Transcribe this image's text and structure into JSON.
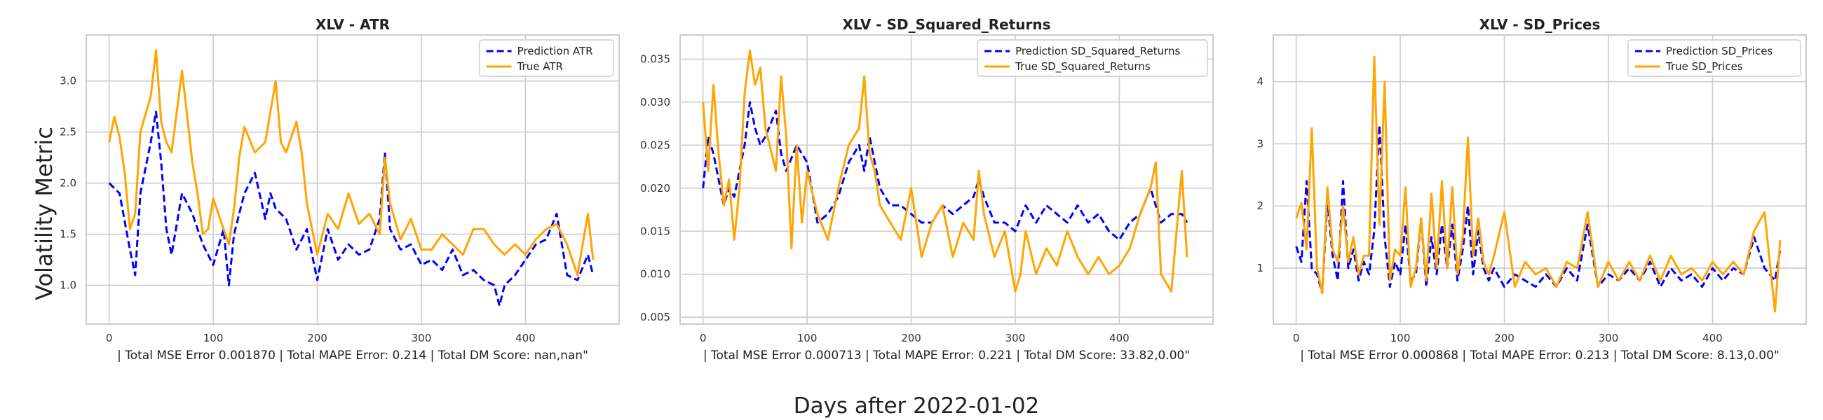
{
  "figure": {
    "ylabel": "Volatility Metric",
    "xlabel": "Days after 2022-01-02"
  },
  "chart_data": [
    {
      "type": "line",
      "title": "XLV - ATR",
      "xlabel": "| Total MSE Error 0.001870 | Total MAPE Error: 0.214 | Total DM Score: nan,nan\"",
      "xlim": [
        -22,
        490
      ],
      "ylim": [
        0.62,
        3.45
      ],
      "xticks": [
        0,
        100,
        200,
        300,
        400
      ],
      "yticks": [
        1.0,
        1.5,
        2.0,
        2.5,
        3.0
      ],
      "ytick_labels": [
        "1.0",
        "1.5",
        "2.0",
        "2.5",
        "3.0"
      ],
      "legend": "top-right",
      "grid": true,
      "series": [
        {
          "name": "Prediction ATR",
          "color": "#0000ff",
          "style": "dashed",
          "x": [
            0,
            10,
            20,
            25,
            30,
            40,
            45,
            50,
            55,
            60,
            70,
            80,
            90,
            100,
            110,
            115,
            120,
            130,
            140,
            150,
            155,
            160,
            170,
            180,
            190,
            200,
            210,
            220,
            230,
            240,
            250,
            260,
            265,
            270,
            280,
            290,
            300,
            310,
            320,
            330,
            340,
            350,
            360,
            370,
            375,
            380,
            390,
            400,
            410,
            420,
            430,
            440,
            450,
            460,
            465
          ],
          "y": [
            2.0,
            1.9,
            1.35,
            1.1,
            1.9,
            2.4,
            2.7,
            2.2,
            1.55,
            1.3,
            1.9,
            1.7,
            1.4,
            1.2,
            1.55,
            1.0,
            1.5,
            1.9,
            2.1,
            1.65,
            1.9,
            1.75,
            1.65,
            1.35,
            1.55,
            1.05,
            1.55,
            1.25,
            1.4,
            1.3,
            1.35,
            1.65,
            2.3,
            1.55,
            1.35,
            1.4,
            1.2,
            1.25,
            1.15,
            1.35,
            1.1,
            1.15,
            1.05,
            1.0,
            0.8,
            1.0,
            1.1,
            1.25,
            1.4,
            1.45,
            1.7,
            1.1,
            1.05,
            1.3,
            1.1
          ]
        },
        {
          "name": "True ATR",
          "color": "#ffa500",
          "style": "solid",
          "x": [
            0,
            5,
            10,
            15,
            20,
            25,
            30,
            40,
            45,
            50,
            55,
            60,
            70,
            75,
            80,
            85,
            90,
            95,
            100,
            110,
            115,
            120,
            125,
            130,
            140,
            150,
            155,
            160,
            165,
            170,
            180,
            185,
            190,
            200,
            210,
            220,
            230,
            240,
            250,
            260,
            265,
            270,
            280,
            290,
            300,
            310,
            320,
            330,
            340,
            350,
            360,
            370,
            380,
            390,
            400,
            410,
            420,
            430,
            440,
            450,
            460,
            465
          ],
          "y": [
            2.4,
            2.65,
            2.45,
            2.1,
            1.55,
            1.7,
            2.5,
            2.85,
            3.3,
            2.6,
            2.4,
            2.3,
            3.1,
            2.65,
            2.2,
            1.9,
            1.5,
            1.55,
            1.85,
            1.55,
            1.4,
            1.75,
            2.25,
            2.55,
            2.3,
            2.4,
            2.7,
            3.0,
            2.4,
            2.3,
            2.6,
            2.3,
            1.8,
            1.3,
            1.7,
            1.55,
            1.9,
            1.6,
            1.7,
            1.5,
            2.25,
            1.8,
            1.45,
            1.65,
            1.35,
            1.35,
            1.5,
            1.4,
            1.3,
            1.55,
            1.55,
            1.4,
            1.3,
            1.4,
            1.3,
            1.45,
            1.55,
            1.6,
            1.4,
            1.1,
            1.7,
            1.25
          ]
        }
      ]
    },
    {
      "type": "line",
      "title": "XLV - SD_Squared_Returns",
      "xlabel": "| Total MSE Error 0.000713 | Total MAPE Error: 0.221 | Total DM Score: 33.82,0.00\"",
      "xlim": [
        -22,
        490
      ],
      "ylim": [
        0.0042,
        0.0378
      ],
      "xticks": [
        0,
        100,
        200,
        300,
        400
      ],
      "yticks": [
        0.005,
        0.01,
        0.015,
        0.02,
        0.025,
        0.03,
        0.035
      ],
      "ytick_labels": [
        "0.005",
        "0.010",
        "0.015",
        "0.020",
        "0.025",
        "0.030",
        "0.035"
      ],
      "legend": "top-right",
      "grid": true,
      "series": [
        {
          "name": "Prediction SD_Squared_Returns",
          "color": "#0000ff",
          "style": "dashed",
          "x": [
            0,
            5,
            10,
            15,
            20,
            25,
            30,
            40,
            45,
            50,
            55,
            60,
            70,
            75,
            80,
            90,
            100,
            110,
            120,
            130,
            140,
            150,
            155,
            160,
            170,
            180,
            190,
            200,
            210,
            220,
            230,
            240,
            250,
            260,
            265,
            270,
            280,
            290,
            300,
            310,
            320,
            330,
            340,
            350,
            360,
            370,
            380,
            390,
            400,
            410,
            420,
            430,
            440,
            450,
            460,
            465
          ],
          "y": [
            0.02,
            0.026,
            0.024,
            0.021,
            0.018,
            0.02,
            0.019,
            0.025,
            0.03,
            0.027,
            0.025,
            0.026,
            0.029,
            0.024,
            0.022,
            0.025,
            0.023,
            0.016,
            0.017,
            0.019,
            0.023,
            0.025,
            0.022,
            0.026,
            0.02,
            0.018,
            0.018,
            0.017,
            0.016,
            0.016,
            0.018,
            0.017,
            0.018,
            0.019,
            0.021,
            0.019,
            0.016,
            0.016,
            0.015,
            0.018,
            0.016,
            0.018,
            0.017,
            0.016,
            0.018,
            0.016,
            0.017,
            0.015,
            0.014,
            0.016,
            0.017,
            0.02,
            0.016,
            0.017,
            0.017,
            0.016
          ]
        },
        {
          "name": "True SD_Squared_Returns",
          "color": "#ffa500",
          "style": "solid",
          "x": [
            0,
            5,
            10,
            15,
            20,
            25,
            30,
            35,
            40,
            45,
            50,
            55,
            60,
            70,
            75,
            80,
            85,
            90,
            95,
            100,
            110,
            120,
            130,
            140,
            150,
            155,
            160,
            165,
            170,
            180,
            190,
            200,
            210,
            220,
            230,
            240,
            250,
            260,
            265,
            270,
            280,
            290,
            300,
            305,
            310,
            320,
            330,
            340,
            350,
            360,
            370,
            380,
            390,
            400,
            410,
            420,
            430,
            435,
            440,
            450,
            460,
            465
          ],
          "y": [
            0.03,
            0.022,
            0.032,
            0.024,
            0.018,
            0.021,
            0.014,
            0.02,
            0.031,
            0.036,
            0.032,
            0.034,
            0.027,
            0.022,
            0.033,
            0.026,
            0.013,
            0.025,
            0.016,
            0.022,
            0.017,
            0.014,
            0.02,
            0.025,
            0.027,
            0.033,
            0.024,
            0.022,
            0.018,
            0.016,
            0.014,
            0.02,
            0.012,
            0.016,
            0.018,
            0.012,
            0.016,
            0.014,
            0.022,
            0.017,
            0.012,
            0.015,
            0.008,
            0.01,
            0.015,
            0.01,
            0.013,
            0.011,
            0.015,
            0.012,
            0.01,
            0.012,
            0.01,
            0.011,
            0.013,
            0.017,
            0.02,
            0.023,
            0.01,
            0.008,
            0.022,
            0.012
          ]
        }
      ]
    },
    {
      "type": "line",
      "title": "XLV - SD_Prices",
      "xlabel": "| Total MSE Error 0.000868 | Total MAPE Error: 0.213 | Total DM Score: 8.13,0.00\"",
      "xlim": [
        -22,
        490
      ],
      "ylim": [
        0.1,
        4.75
      ],
      "xticks": [
        0,
        100,
        200,
        300,
        400
      ],
      "yticks": [
        1,
        2,
        3,
        4
      ],
      "ytick_labels": [
        "1",
        "2",
        "3",
        "4"
      ],
      "legend": "top-right",
      "grid": true,
      "series": [
        {
          "name": "Prediction SD_Prices",
          "color": "#0000ff",
          "style": "dashed",
          "x": [
            0,
            5,
            10,
            15,
            20,
            25,
            30,
            35,
            40,
            45,
            50,
            55,
            60,
            65,
            70,
            75,
            80,
            85,
            90,
            95,
            100,
            105,
            110,
            115,
            120,
            125,
            130,
            135,
            140,
            145,
            150,
            155,
            160,
            165,
            170,
            175,
            180,
            185,
            190,
            200,
            210,
            220,
            230,
            240,
            250,
            260,
            270,
            280,
            290,
            300,
            310,
            320,
            330,
            340,
            350,
            360,
            370,
            380,
            390,
            400,
            410,
            420,
            430,
            440,
            450,
            460,
            465
          ],
          "y": [
            1.35,
            1.1,
            2.4,
            1.0,
            0.9,
            0.6,
            2.1,
            1.2,
            0.8,
            2.4,
            1.0,
            1.3,
            0.8,
            1.1,
            0.9,
            1.6,
            3.3,
            1.5,
            0.7,
            1.1,
            0.9,
            1.7,
            0.8,
            0.9,
            1.8,
            0.7,
            1.5,
            0.9,
            1.7,
            1.0,
            1.7,
            0.8,
            1.3,
            2.0,
            0.9,
            1.6,
            1.0,
            0.8,
            1.0,
            0.7,
            0.9,
            0.8,
            0.7,
            0.9,
            0.7,
            1.0,
            0.8,
            1.7,
            0.7,
            0.9,
            0.8,
            1.0,
            0.8,
            1.1,
            0.7,
            1.0,
            0.8,
            0.9,
            0.7,
            1.0,
            0.8,
            1.0,
            0.9,
            1.5,
            1.0,
            0.8,
            1.3
          ]
        },
        {
          "name": "True SD_Prices",
          "color": "#ffa500",
          "style": "solid",
          "x": [
            0,
            5,
            10,
            15,
            20,
            25,
            30,
            35,
            40,
            45,
            50,
            55,
            60,
            65,
            70,
            75,
            80,
            85,
            90,
            95,
            100,
            105,
            110,
            115,
            120,
            125,
            130,
            135,
            140,
            145,
            150,
            155,
            160,
            165,
            170,
            175,
            180,
            185,
            190,
            200,
            210,
            220,
            230,
            240,
            250,
            260,
            270,
            280,
            290,
            300,
            310,
            320,
            330,
            340,
            350,
            360,
            370,
            380,
            390,
            400,
            410,
            420,
            430,
            440,
            450,
            460,
            465
          ],
          "y": [
            1.8,
            2.05,
            1.3,
            3.25,
            1.0,
            0.6,
            2.3,
            1.3,
            1.1,
            2.0,
            1.1,
            1.5,
            0.9,
            1.2,
            1.2,
            4.4,
            1.7,
            4.0,
            0.8,
            1.3,
            1.2,
            2.3,
            0.7,
            1.0,
            1.8,
            0.8,
            2.2,
            1.0,
            2.4,
            1.0,
            2.3,
            0.9,
            1.5,
            3.1,
            1.2,
            1.8,
            1.1,
            0.9,
            1.2,
            1.9,
            0.7,
            1.1,
            0.9,
            1.0,
            0.7,
            1.1,
            1.0,
            1.9,
            0.7,
            1.1,
            0.8,
            1.1,
            0.8,
            1.2,
            0.8,
            1.2,
            0.9,
            1.0,
            0.8,
            1.1,
            0.9,
            1.1,
            0.9,
            1.6,
            1.9,
            0.3,
            1.45
          ]
        }
      ]
    }
  ]
}
